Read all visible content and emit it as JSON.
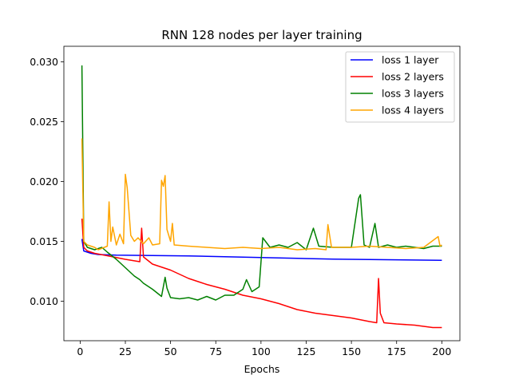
{
  "chart_data": {
    "type": "line",
    "title": "RNN 128 nodes per layer training",
    "xlabel": "Epochs",
    "ylabel": "",
    "xlim": [
      -9,
      210
    ],
    "ylim": [
      0.0067,
      0.0313
    ],
    "xticks": [
      0,
      25,
      50,
      75,
      100,
      125,
      150,
      175,
      200
    ],
    "yticks": [
      0.01,
      0.015,
      0.02,
      0.025,
      0.03
    ],
    "ytick_labels": [
      "0.010",
      "0.015",
      "0.020",
      "0.025",
      "0.030"
    ],
    "grid": false,
    "legend_position": "top-right",
    "series": [
      {
        "name": "loss 1 layer",
        "color": "#0000ff",
        "points": [
          [
            1,
            0.0152
          ],
          [
            2,
            0.0142
          ],
          [
            4,
            0.0141
          ],
          [
            6,
            0.014
          ],
          [
            10,
            0.0139
          ],
          [
            20,
            0.01385
          ],
          [
            40,
            0.01382
          ],
          [
            60,
            0.01378
          ],
          [
            80,
            0.01372
          ],
          [
            100,
            0.01365
          ],
          [
            120,
            0.01358
          ],
          [
            140,
            0.01352
          ],
          [
            160,
            0.01348
          ],
          [
            180,
            0.01345
          ],
          [
            200,
            0.01342
          ]
        ]
      },
      {
        "name": "loss 2 layers",
        "color": "#ff0000",
        "points": [
          [
            1,
            0.0169
          ],
          [
            2,
            0.0145
          ],
          [
            4,
            0.0142
          ],
          [
            8,
            0.014
          ],
          [
            15,
            0.0138
          ],
          [
            25,
            0.0135
          ],
          [
            33,
            0.0133
          ],
          [
            34,
            0.0161
          ],
          [
            35,
            0.0137
          ],
          [
            40,
            0.0131
          ],
          [
            50,
            0.0126
          ],
          [
            60,
            0.0119
          ],
          [
            70,
            0.0114
          ],
          [
            80,
            0.011
          ],
          [
            90,
            0.0105
          ],
          [
            100,
            0.0102
          ],
          [
            110,
            0.0098
          ],
          [
            120,
            0.0093
          ],
          [
            130,
            0.009
          ],
          [
            140,
            0.0088
          ],
          [
            150,
            0.0086
          ],
          [
            160,
            0.0083
          ],
          [
            164,
            0.0082
          ],
          [
            165,
            0.0119
          ],
          [
            166,
            0.009
          ],
          [
            168,
            0.0082
          ],
          [
            175,
            0.0081
          ],
          [
            185,
            0.008
          ],
          [
            195,
            0.0078
          ],
          [
            200,
            0.0078
          ]
        ]
      },
      {
        "name": "loss 3 layers",
        "color": "#008000",
        "points": [
          [
            1,
            0.0297
          ],
          [
            2,
            0.015
          ],
          [
            4,
            0.0145
          ],
          [
            8,
            0.0143
          ],
          [
            12,
            0.0145
          ],
          [
            15,
            0.0141
          ],
          [
            20,
            0.0135
          ],
          [
            25,
            0.0128
          ],
          [
            30,
            0.0121
          ],
          [
            33,
            0.0118
          ],
          [
            35,
            0.0115
          ],
          [
            40,
            0.011
          ],
          [
            45,
            0.0104
          ],
          [
            47,
            0.012
          ],
          [
            48,
            0.0111
          ],
          [
            50,
            0.0103
          ],
          [
            55,
            0.0102
          ],
          [
            60,
            0.0103
          ],
          [
            65,
            0.0101
          ],
          [
            70,
            0.0104
          ],
          [
            75,
            0.0101
          ],
          [
            80,
            0.0105
          ],
          [
            85,
            0.0105
          ],
          [
            90,
            0.011
          ],
          [
            92,
            0.0118
          ],
          [
            95,
            0.0108
          ],
          [
            99,
            0.0112
          ],
          [
            101,
            0.0153
          ],
          [
            105,
            0.0145
          ],
          [
            110,
            0.0147
          ],
          [
            115,
            0.0145
          ],
          [
            120,
            0.0149
          ],
          [
            125,
            0.0143
          ],
          [
            129,
            0.0161
          ],
          [
            132,
            0.0146
          ],
          [
            140,
            0.0145
          ],
          [
            150,
            0.0145
          ],
          [
            154,
            0.0186
          ],
          [
            155,
            0.0189
          ],
          [
            157,
            0.0147
          ],
          [
            160,
            0.0145
          ],
          [
            163,
            0.0165
          ],
          [
            165,
            0.0145
          ],
          [
            170,
            0.0147
          ],
          [
            175,
            0.0145
          ],
          [
            180,
            0.0146
          ],
          [
            190,
            0.0144
          ],
          [
            195,
            0.0146
          ],
          [
            200,
            0.0146
          ]
        ]
      },
      {
        "name": "loss 4 layers",
        "color": "#ffa500",
        "points": [
          [
            1,
            0.0236
          ],
          [
            2,
            0.015
          ],
          [
            4,
            0.0147
          ],
          [
            8,
            0.0145
          ],
          [
            10,
            0.0143
          ],
          [
            15,
            0.0146
          ],
          [
            16,
            0.0183
          ],
          [
            17,
            0.015
          ],
          [
            18,
            0.0162
          ],
          [
            20,
            0.0147
          ],
          [
            22,
            0.0156
          ],
          [
            24,
            0.0148
          ],
          [
            25,
            0.0206
          ],
          [
            26,
            0.0195
          ],
          [
            28,
            0.0155
          ],
          [
            30,
            0.015
          ],
          [
            32,
            0.0153
          ],
          [
            35,
            0.0148
          ],
          [
            38,
            0.0153
          ],
          [
            40,
            0.0147
          ],
          [
            44,
            0.0148
          ],
          [
            45,
            0.0201
          ],
          [
            46,
            0.0196
          ],
          [
            47,
            0.0205
          ],
          [
            48,
            0.016
          ],
          [
            50,
            0.015
          ],
          [
            51,
            0.0165
          ],
          [
            52,
            0.0147
          ],
          [
            60,
            0.0146
          ],
          [
            70,
            0.0145
          ],
          [
            80,
            0.0144
          ],
          [
            90,
            0.0145
          ],
          [
            100,
            0.0144
          ],
          [
            110,
            0.0145
          ],
          [
            120,
            0.0143
          ],
          [
            130,
            0.0144
          ],
          [
            136,
            0.0143
          ],
          [
            137,
            0.0164
          ],
          [
            139,
            0.0145
          ],
          [
            150,
            0.0145
          ],
          [
            160,
            0.0146
          ],
          [
            170,
            0.0145
          ],
          [
            180,
            0.0144
          ],
          [
            190,
            0.0145
          ],
          [
            198,
            0.0154
          ],
          [
            199,
            0.0146
          ],
          [
            200,
            0.0147
          ]
        ]
      }
    ]
  }
}
